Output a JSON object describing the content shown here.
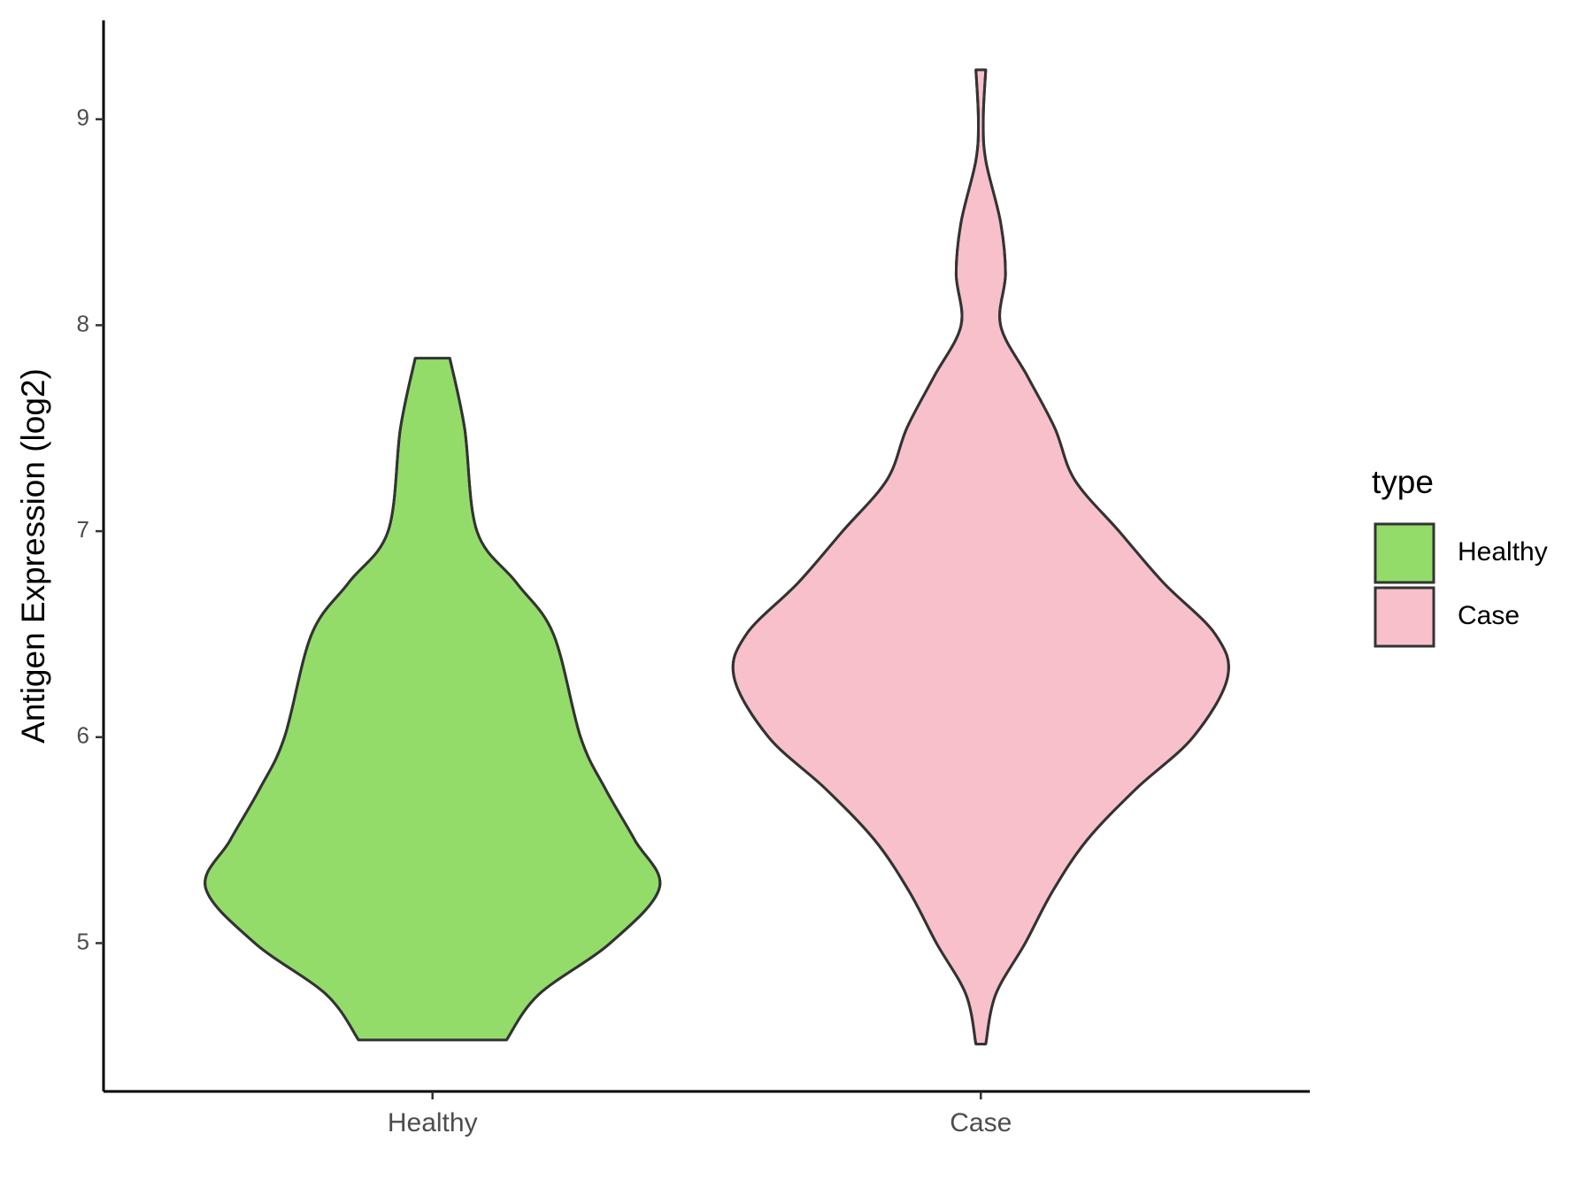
{
  "chart_data": {
    "type": "violin",
    "ylabel": "Antigen Expression (log2)",
    "categories": [
      "Healthy",
      "Case"
    ],
    "legend_title": "type",
    "legend_position": "right",
    "ylim": [
      4.28,
      9.48
    ],
    "yticks": [
      5,
      6,
      7,
      8,
      9
    ],
    "series": [
      {
        "name": "Healthy",
        "color": "#93dc6a",
        "y": [
          7.84,
          7.5,
          7.0,
          6.75,
          6.5,
          6.0,
          5.75,
          5.5,
          5.27,
          5.0,
          4.75,
          4.53
        ],
        "density": [
          0.07,
          0.13,
          0.18,
          0.34,
          0.49,
          0.6,
          0.7,
          0.82,
          0.92,
          0.72,
          0.43,
          0.3
        ]
      },
      {
        "name": "Case",
        "color": "#f8c0cb",
        "y": [
          9.24,
          9.0,
          8.8,
          8.5,
          8.25,
          8.0,
          7.75,
          7.5,
          7.25,
          7.0,
          6.75,
          6.5,
          6.29,
          6.0,
          5.75,
          5.5,
          5.25,
          5.0,
          4.75,
          4.51
        ],
        "density": [
          0.02,
          0.01,
          0.02,
          0.08,
          0.1,
          0.08,
          0.19,
          0.3,
          0.38,
          0.56,
          0.74,
          0.95,
          1.0,
          0.86,
          0.63,
          0.43,
          0.29,
          0.18,
          0.06,
          0.02
        ]
      }
    ]
  }
}
